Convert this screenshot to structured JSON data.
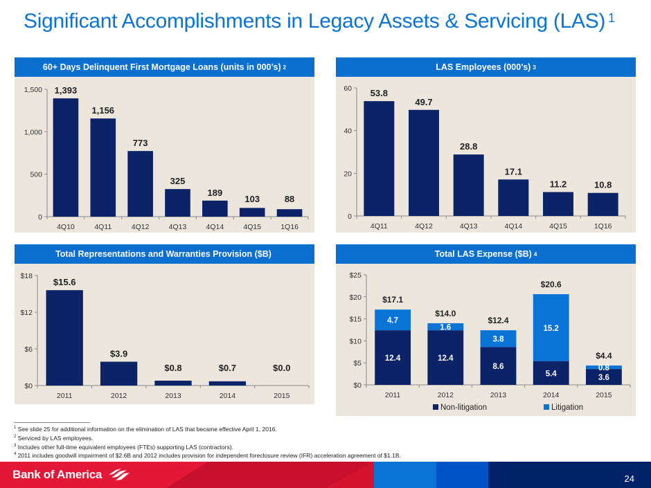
{
  "slide": {
    "title": "Significant Accomplishments in Legacy Assets & Servicing (LAS)",
    "title_sup": "1",
    "page_number": "24",
    "logo_text": "Bank of America",
    "colors": {
      "title": "#0a74d6",
      "header": "#0a6fcf",
      "panel_bg": "#ece6dd",
      "dark_bar": "#0c2368",
      "light_bar": "#0a74d6"
    }
  },
  "panels": [
    {
      "title": "60+ Days Delinquent First Mortgage Loans (units in 000’s)",
      "sup": "2"
    },
    {
      "title": "LAS Employees (000’s)",
      "sup": "3"
    },
    {
      "title": "Total Representations and Warranties Provision ($B)",
      "sup": ""
    },
    {
      "title": "Total LAS Expense ($B)",
      "sup": "4"
    }
  ],
  "chart_data": [
    {
      "type": "bar",
      "title": "60+ Days Delinquent First Mortgage Loans (units in 000’s)",
      "categories": [
        "4Q10",
        "4Q11",
        "4Q12",
        "4Q13",
        "4Q14",
        "4Q15",
        "1Q16"
      ],
      "values": [
        1393,
        1156,
        773,
        325,
        189,
        103,
        88
      ],
      "labels": [
        "1,393",
        "1,156",
        "773",
        "325",
        "189",
        "103",
        "88"
      ],
      "yticks": [
        0,
        500,
        1000,
        1500
      ],
      "ytick_labels": [
        "0",
        "500",
        "1,000",
        "1,500"
      ],
      "ylim": [
        0,
        1500
      ],
      "xlabel": "",
      "ylabel": "",
      "grid": false
    },
    {
      "type": "bar",
      "title": "LAS Employees (000’s)",
      "categories": [
        "4Q11",
        "4Q12",
        "4Q13",
        "4Q14",
        "4Q15",
        "1Q16"
      ],
      "values": [
        53.8,
        49.7,
        28.8,
        17.1,
        11.2,
        10.8
      ],
      "labels": [
        "53.8",
        "49.7",
        "28.8",
        "17.1",
        "11.2",
        "10.8"
      ],
      "yticks": [
        0,
        20,
        40,
        60
      ],
      "ytick_labels": [
        "0",
        "20",
        "40",
        "60"
      ],
      "ylim": [
        0,
        60
      ],
      "xlabel": "",
      "ylabel": "",
      "grid": false
    },
    {
      "type": "bar",
      "title": "Total Representations and Warranties Provision ($B)",
      "categories": [
        "2011",
        "2012",
        "2013",
        "2014",
        "2015"
      ],
      "values": [
        15.6,
        3.9,
        0.8,
        0.7,
        0.0
      ],
      "labels": [
        "$15.6",
        "$3.9",
        "$0.8",
        "$0.7",
        "$0.0"
      ],
      "yticks": [
        0,
        6,
        12,
        18
      ],
      "ytick_labels": [
        "$0",
        "$6",
        "$12",
        "$18"
      ],
      "ylim": [
        0,
        18
      ],
      "xlabel": "",
      "ylabel": "",
      "grid": false
    },
    {
      "type": "bar",
      "stacked": true,
      "title": "Total LAS Expense ($B)",
      "categories": [
        "2011",
        "2012",
        "2013",
        "2014",
        "2015"
      ],
      "series": [
        {
          "name": "Non-litigation",
          "values": [
            12.4,
            12.4,
            8.6,
            5.4,
            3.6
          ],
          "labels": [
            "12.4",
            "12.4",
            "8.6",
            "5.4",
            "3.6"
          ]
        },
        {
          "name": "Litigation",
          "values": [
            4.7,
            1.6,
            3.8,
            15.2,
            0.8
          ],
          "labels": [
            "4.7",
            "1.6",
            "3.8",
            "15.2",
            "0.8"
          ]
        }
      ],
      "totals": [
        "$17.1",
        "$14.0",
        "$12.4",
        "$20.6",
        "$4.4"
      ],
      "yticks": [
        0,
        5,
        10,
        15,
        20,
        25
      ],
      "ytick_labels": [
        "$0",
        "$5",
        "$10",
        "$15",
        "$20",
        "$25"
      ],
      "ylim": [
        0,
        25
      ],
      "legend": "bottom",
      "xlabel": "",
      "ylabel": "",
      "grid": false
    }
  ],
  "footnotes": [
    {
      "sup": "1",
      "text": "See slide 25 for additional information on the elimination of LAS that became effective April 1, 2016."
    },
    {
      "sup": "2",
      "text": "Serviced by LAS employees."
    },
    {
      "sup": "3",
      "text": "Includes other full-time equivalent employees (FTEs) supporting LAS (contractors)."
    },
    {
      "sup": "4",
      "text": "2011 includes goodwill impairment of $2.6B and 2012 includes provision for independent foreclosure review (IFR) acceleration agreement of $1.1B."
    }
  ]
}
